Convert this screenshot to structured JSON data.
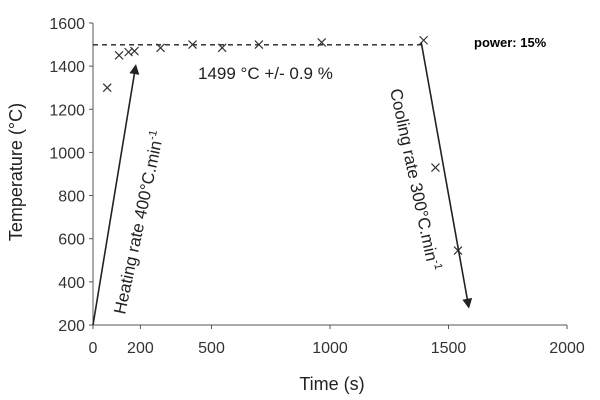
{
  "chart_data": {
    "type": "scatter",
    "xlabel": "Time (s)",
    "ylabel": "Temperature (°C)",
    "xlim": [
      0,
      2000
    ],
    "ylim": [
      200,
      1600
    ],
    "x_ticks": [
      "0",
      "200",
      "500",
      "1000",
      "1500",
      "2000"
    ],
    "x_tick_values": [
      0,
      200,
      500,
      1000,
      1500,
      2000
    ],
    "y_ticks": [
      "200",
      "400",
      "600",
      "800",
      "1000",
      "1200",
      "1400",
      "1600"
    ],
    "y_tick_values": [
      200,
      400,
      600,
      800,
      1000,
      1200,
      1400,
      1600
    ],
    "grid": false,
    "series": [
      {
        "marker": "x",
        "x": [
          60,
          110,
          150,
          175,
          285,
          420,
          545,
          700,
          965,
          1395,
          1445,
          1540
        ],
        "y": [
          1300,
          1450,
          1465,
          1470,
          1485,
          1500,
          1485,
          1500,
          1510,
          1520,
          930,
          545
        ]
      }
    ],
    "reference_line": {
      "y": 1499,
      "style": "dashed",
      "x_range": [
        0,
        1400
      ]
    },
    "annotations": {
      "setpoint": "1499 °C +/- 0.9 %",
      "heating": "Heating rate 400°C.min",
      "heating_exp": "-1",
      "cooling": "Cooling rate 300°C.min",
      "cooling_exp": "-1",
      "power": "power: 15%"
    },
    "arrows": [
      {
        "from": [
          0,
          200
        ],
        "to": [
          180,
          1400
        ]
      },
      {
        "from": [
          1385,
          1510
        ],
        "to": [
          1585,
          285
        ]
      }
    ]
  }
}
